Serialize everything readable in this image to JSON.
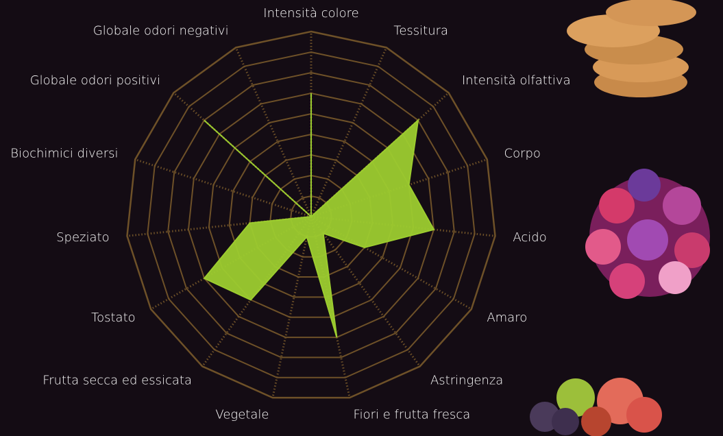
{
  "chart_data": {
    "type": "radar",
    "categories": [
      "Intensità colore",
      "Tessitura",
      "Intensità olfattiva",
      "Corpo",
      "Acido",
      "Amaro",
      "Astringenza",
      "Fiori e frutta fresca",
      "Vegetale",
      "Frutta secca ed essicata",
      "Tostato",
      "Speziato",
      "Biochimici diversi",
      "Globale odori positivi",
      "Globale odori negativi"
    ],
    "values": [
      6,
      0,
      7,
      5,
      6,
      3,
      1,
      6,
      1,
      5,
      6,
      3,
      0,
      7,
      0
    ],
    "color": "#9ccc2f",
    "grid_color": "#6e5128",
    "rlim": [
      0,
      9
    ],
    "rticks": [
      1,
      2,
      3,
      4,
      5,
      6,
      7,
      8,
      9
    ]
  }
}
